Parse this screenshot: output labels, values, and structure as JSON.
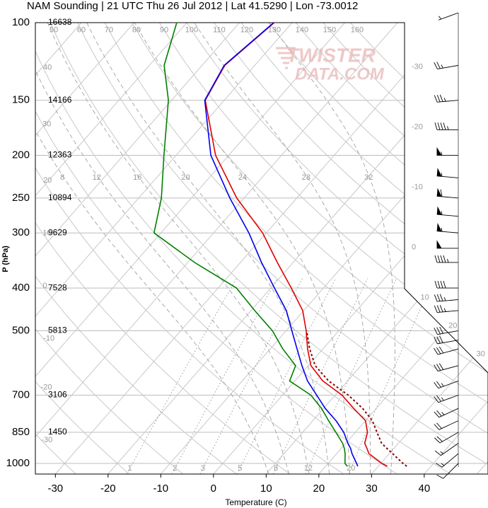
{
  "chart_data": {
    "type": "skewt",
    "title": "NAM Sounding | 21 UTC Thu 26 Jul 2012 | Lat 41.5290 | Lon -73.0012",
    "xlabel": "Temperature (C)",
    "ylabel": "P (hPa)",
    "watermark": [
      "TWISTER",
      "DATA.COM"
    ],
    "xlim": [
      -33.8,
      52.1
    ],
    "ylim": [
      1057,
      100
    ],
    "log_y": true,
    "grid": true,
    "xticks": [
      -30,
      -20,
      -10,
      0,
      10,
      20,
      30,
      40
    ],
    "yticks": [
      100,
      150,
      200,
      250,
      300,
      400,
      500,
      700,
      850,
      1000
    ],
    "heights": [
      16638,
      14166,
      12363,
      10894,
      9629,
      7528,
      5813,
      3106,
      1450,
      null
    ],
    "pressure": [
      1015,
      1000,
      950,
      925,
      900,
      850,
      800,
      750,
      700,
      650,
      600,
      550,
      500,
      450,
      400,
      350,
      300,
      250,
      200,
      150,
      125,
      100
    ],
    "series": [
      {
        "color": "#e00000",
        "values": [
          31.7,
          30.2,
          26.1,
          24.9,
          23.6,
          22.3,
          20.0,
          15.7,
          11.3,
          5.3,
          0.5,
          -2.9,
          -6.2,
          -10.2,
          -16.1,
          -23.0,
          -30.7,
          -41.4,
          -52.5,
          -63.6,
          -65.7,
          -63.4
        ]
      },
      {
        "color": "#0000ee",
        "values": [
          26.1,
          25.4,
          22.9,
          21.8,
          20.4,
          17.8,
          14.4,
          10.3,
          6.5,
          2.4,
          -1.2,
          -4.9,
          -8.9,
          -13.3,
          -19.3,
          -26.0,
          -33.3,
          -42.7,
          -53.4,
          -63.7,
          -65.8,
          -63.5
        ]
      },
      {
        "color": "#008000",
        "values": [
          24.1,
          23.2,
          21.6,
          20.6,
          19.4,
          16.3,
          13.0,
          9.6,
          5.4,
          -1.0,
          -2.4,
          -7.6,
          -12.6,
          -19.3,
          -26.5,
          -38.7,
          -51.3,
          -55.7,
          -62.3,
          -70.6,
          -77.2,
          -81.9
        ]
      },
      {
        "color": "#8b0000",
        "style": "dotted",
        "values": [
          35.4,
          34.2,
          30.6,
          28.7,
          26.8,
          24.1,
          21.3,
          17.4,
          12.5,
          6.4,
          1.3,
          -2.5,
          -6.1,
          null,
          null,
          null,
          null,
          null,
          null,
          null,
          null,
          null
        ]
      }
    ],
    "winds": {
      "pressure": [
        95,
        125,
        150,
        175,
        200,
        225,
        250,
        275,
        300,
        325,
        350,
        400,
        425,
        450,
        500,
        525,
        550,
        600,
        650,
        700,
        750,
        800,
        850,
        900,
        950,
        1000
      ],
      "speed": [
        5,
        25,
        35,
        45,
        55,
        55,
        60,
        55,
        55,
        50,
        45,
        40,
        35,
        35,
        30,
        30,
        30,
        30,
        25,
        25,
        25,
        20,
        20,
        15,
        15,
        10
      ],
      "direction": [
        250,
        260,
        265,
        270,
        270,
        275,
        275,
        275,
        275,
        270,
        270,
        270,
        265,
        265,
        260,
        260,
        255,
        255,
        250,
        250,
        245,
        245,
        240,
        235,
        230,
        225
      ]
    },
    "isotherms": [
      -110,
      -100,
      -90,
      -80,
      -70,
      -60,
      -50,
      -40,
      -30,
      -20,
      -10,
      0,
      10,
      20,
      30,
      40,
      50
    ],
    "dry_adiabats": [
      -30,
      -20,
      -10,
      0,
      10,
      20,
      30,
      40,
      50,
      60,
      70,
      80,
      90,
      100,
      110,
      120,
      130,
      140,
      150,
      160
    ],
    "moist_adiabats": [
      8,
      12,
      16,
      20,
      24,
      28,
      32
    ],
    "mixing_ratios": [
      1,
      2,
      3,
      5,
      8,
      12,
      20
    ]
  }
}
